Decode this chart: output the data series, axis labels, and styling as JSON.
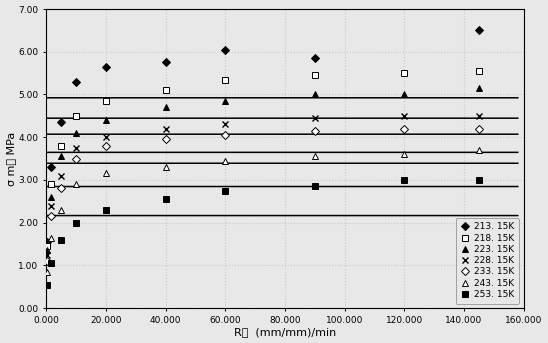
{
  "ylabel": "σ m， MPa",
  "xlabel": "R，  (mm/mm)/min",
  "xlim": [
    0,
    160000
  ],
  "ylim": [
    0.0,
    7.0
  ],
  "xticks": [
    0,
    20000,
    40000,
    60000,
    80000,
    100000,
    120000,
    140000,
    160000
  ],
  "xticklabels": [
    "0.000",
    "20.000",
    "40.000",
    "60.000",
    "80.000",
    "100.000",
    "120.000",
    "140.000",
    "160.000"
  ],
  "yticks": [
    0.0,
    1.0,
    2.0,
    3.0,
    4.0,
    5.0,
    6.0,
    7.0
  ],
  "yticklabels": [
    "0.00",
    "1.00",
    "2.00",
    "3.00",
    "4.00",
    "5.00",
    "6.00",
    "7.00"
  ],
  "series": [
    {
      "label": "213. 15K",
      "marker": "D",
      "filled": true,
      "data_x": [
        200,
        1500,
        5000,
        10000,
        20000,
        40000,
        60000,
        90000,
        145000
      ],
      "data_y": [
        1.55,
        3.3,
        4.35,
        5.3,
        5.65,
        5.75,
        6.05,
        5.85,
        6.5
      ]
    },
    {
      "label": "218. 15K",
      "marker": "s",
      "filled": false,
      "data_x": [
        200,
        1500,
        5000,
        10000,
        20000,
        40000,
        60000,
        90000,
        120000,
        145000
      ],
      "data_y": [
        1.45,
        2.9,
        3.8,
        4.5,
        4.85,
        5.1,
        5.35,
        5.45,
        5.5,
        5.55
      ]
    },
    {
      "label": "223. 15K",
      "marker": "^",
      "filled": true,
      "data_x": [
        200,
        1500,
        5000,
        10000,
        20000,
        40000,
        60000,
        90000,
        120000,
        145000
      ],
      "data_y": [
        1.35,
        2.6,
        3.55,
        4.1,
        4.4,
        4.7,
        4.85,
        5.0,
        5.0,
        5.15
      ]
    },
    {
      "label": "228. 15K",
      "marker": "x",
      "filled": true,
      "data_x": [
        200,
        1500,
        5000,
        10000,
        20000,
        40000,
        60000,
        90000,
        120000,
        145000
      ],
      "data_y": [
        1.25,
        2.4,
        3.1,
        3.75,
        4.0,
        4.2,
        4.3,
        4.45,
        4.5,
        4.5
      ]
    },
    {
      "label": "233. 15K",
      "marker": "D",
      "filled": false,
      "data_x": [
        200,
        1500,
        5000,
        10000,
        20000,
        40000,
        60000,
        90000,
        120000,
        145000
      ],
      "data_y": [
        1.1,
        2.15,
        2.8,
        3.5,
        3.8,
        3.95,
        4.05,
        4.15,
        4.2,
        4.2
      ]
    },
    {
      "label": "243. 15K",
      "marker": "^",
      "filled": false,
      "data_x": [
        200,
        1500,
        5000,
        10000,
        20000,
        40000,
        60000,
        90000,
        120000,
        145000
      ],
      "data_y": [
        0.85,
        1.65,
        2.3,
        2.9,
        3.15,
        3.3,
        3.45,
        3.55,
        3.6,
        3.7
      ]
    },
    {
      "label": "253. 15K",
      "marker": "s",
      "filled": true,
      "data_x": [
        200,
        1500,
        5000,
        10000,
        20000,
        40000,
        60000,
        90000,
        120000,
        145000
      ],
      "data_y": [
        0.55,
        1.05,
        1.6,
        2.0,
        2.3,
        2.55,
        2.75,
        2.85,
        3.0,
        3.0
      ]
    }
  ],
  "background_color": "#e8e8e8",
  "grid_color": "#c8c8c8",
  "legend_fontsize": 6.5,
  "tick_fontsize": 6.5,
  "label_fontsize": 8
}
